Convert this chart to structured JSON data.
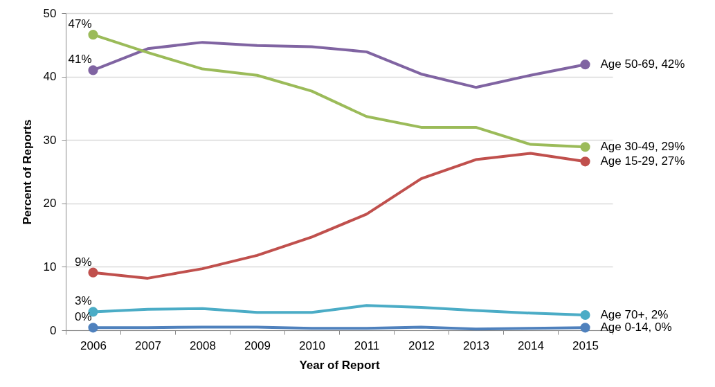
{
  "chart_data": {
    "type": "line",
    "xlabel": "Year of Report",
    "ylabel": "Percent of Reports",
    "categories": [
      "2006",
      "2007",
      "2008",
      "2009",
      "2010",
      "2011",
      "2012",
      "2013",
      "2014",
      "2015"
    ],
    "ylim": [
      0,
      50
    ],
    "yticks": [
      0,
      10,
      20,
      30,
      40,
      50
    ],
    "grid": "y",
    "line_style": "solid",
    "series": [
      {
        "color": "#8064a2",
        "values": [
          41.0,
          44.4,
          45.4,
          44.9,
          44.7,
          43.9,
          40.4,
          38.3,
          40.2,
          41.9
        ],
        "value_labels": [
          "41%",
          null,
          null,
          null,
          null,
          null,
          null,
          null,
          null,
          "Age 50-69, 42%"
        ]
      },
      {
        "color": "#9bbb59",
        "values": [
          46.6,
          43.8,
          41.2,
          40.2,
          37.7,
          33.7,
          32.0,
          32.0,
          29.3,
          28.9
        ],
        "value_labels": [
          "47%",
          null,
          null,
          null,
          null,
          null,
          null,
          null,
          null,
          "Age 30-49, 29%"
        ]
      },
      {
        "color": "#c0504d",
        "values": [
          9.1,
          8.2,
          9.7,
          11.8,
          14.7,
          18.3,
          23.9,
          26.9,
          27.9,
          26.6
        ],
        "value_labels": [
          "9%",
          null,
          null,
          null,
          null,
          null,
          null,
          null,
          null,
          "Age 15-29, 27%"
        ]
      },
      {
        "color": "#4bacc6",
        "values": [
          2.9,
          3.3,
          3.4,
          2.8,
          2.8,
          3.9,
          3.6,
          3.1,
          2.7,
          2.4
        ],
        "value_labels": [
          "3%",
          null,
          null,
          null,
          null,
          null,
          null,
          null,
          null,
          "Age 70+, 2%"
        ]
      },
      {
        "color": "#4f81bd",
        "values": [
          0.4,
          0.4,
          0.5,
          0.5,
          0.3,
          0.3,
          0.5,
          0.2,
          0.3,
          0.4
        ],
        "value_labels": [
          "0%",
          null,
          null,
          null,
          null,
          null,
          null,
          null,
          null,
          "Age 0-14, 0%"
        ]
      }
    ]
  }
}
